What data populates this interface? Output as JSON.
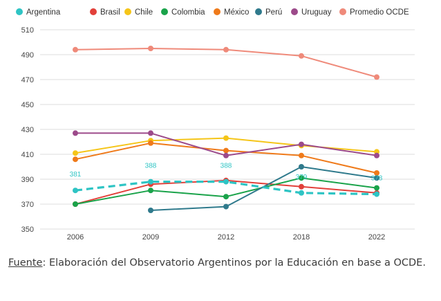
{
  "chart_data": {
    "type": "line",
    "x": [
      "2006",
      "2009",
      "2012",
      "2018",
      "2022"
    ],
    "ylim": [
      350,
      510
    ],
    "yticks": [
      350,
      370,
      390,
      410,
      430,
      450,
      470,
      490,
      510
    ],
    "grid": true,
    "legend_position": "top",
    "series": [
      {
        "name": "Argentina",
        "color": "#2ec4c4",
        "dashed": true,
        "labels": true,
        "values": [
          381,
          388,
          388,
          379,
          378
        ]
      },
      {
        "name": "Brasil",
        "color": "#e2403a",
        "values": [
          370,
          386,
          389,
          384,
          379
        ]
      },
      {
        "name": "Chile",
        "color": "#f5c518",
        "values": [
          411,
          421,
          423,
          417,
          412
        ]
      },
      {
        "name": "Colombia",
        "color": "#1aa34a",
        "values": [
          370,
          381,
          376,
          391,
          383
        ]
      },
      {
        "name": "México",
        "color": "#ef7a1a",
        "values": [
          406,
          419,
          413,
          409,
          395
        ]
      },
      {
        "name": "Perú",
        "color": "#2f7a8c",
        "values": [
          null,
          365,
          368,
          400,
          391
        ]
      },
      {
        "name": "Uruguay",
        "color": "#9c4a8a",
        "values": [
          427,
          427,
          409,
          418,
          409
        ]
      },
      {
        "name": "Promedio OCDE",
        "color": "#ef8a7a",
        "values": [
          494,
          495,
          494,
          489,
          472
        ]
      }
    ]
  },
  "source": {
    "label": "Fuente",
    "text": ": Elaboración del Observatorio Argentinos por la Educación en base a OCDE."
  }
}
